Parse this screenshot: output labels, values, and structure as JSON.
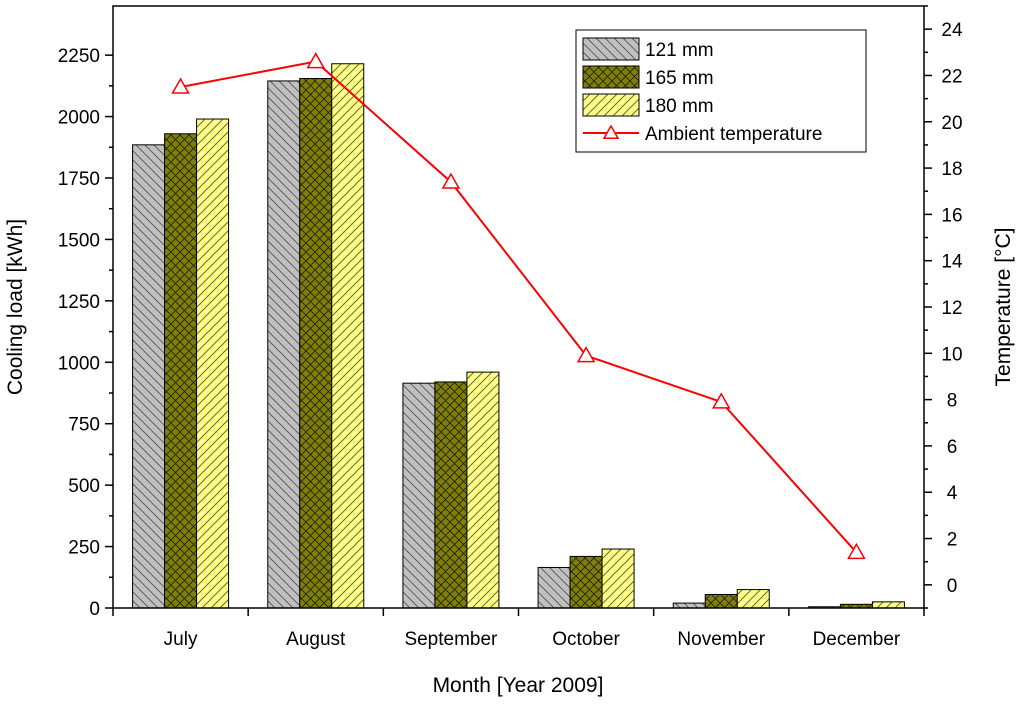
{
  "chart_data": {
    "type": "bar",
    "title": "",
    "xlabel": "Month [Year 2009]",
    "ylabel": "Cooling load [kWh]",
    "y2label": "Temperature [°C]",
    "categories": [
      "July",
      "August",
      "September",
      "October",
      "November",
      "December"
    ],
    "ylim": [
      0,
      2450
    ],
    "yticks": [
      0,
      250,
      500,
      750,
      1000,
      1250,
      1500,
      1750,
      2000,
      2250
    ],
    "y2lim": [
      -1,
      25
    ],
    "y2ticks": [
      0,
      2,
      4,
      6,
      8,
      10,
      12,
      14,
      16,
      18,
      20,
      22,
      24
    ],
    "series": [
      {
        "name": "121 mm",
        "type": "bar",
        "color": "#c0c0c0",
        "pattern": "back-diagonal",
        "values": [
          1885,
          2145,
          915,
          165,
          20,
          5
        ]
      },
      {
        "name": "165 mm",
        "type": "bar",
        "color": "#808000",
        "pattern": "crosshatch",
        "values": [
          1930,
          2155,
          920,
          210,
          55,
          15
        ]
      },
      {
        "name": "180 mm",
        "type": "bar",
        "color": "#ffff80",
        "pattern": "forward-diagonal",
        "values": [
          1990,
          2215,
          960,
          240,
          75,
          25
        ]
      },
      {
        "name": "Ambient temperature",
        "type": "line",
        "axis": "right",
        "color": "#ff0000",
        "marker": "open-triangle",
        "values": [
          21.5,
          22.6,
          17.4,
          9.9,
          7.9,
          1.4
        ]
      }
    ],
    "legend": {
      "position": "top-right",
      "entries": [
        "121 mm",
        "165 mm",
        "180 mm",
        "Ambient temperature"
      ]
    }
  }
}
